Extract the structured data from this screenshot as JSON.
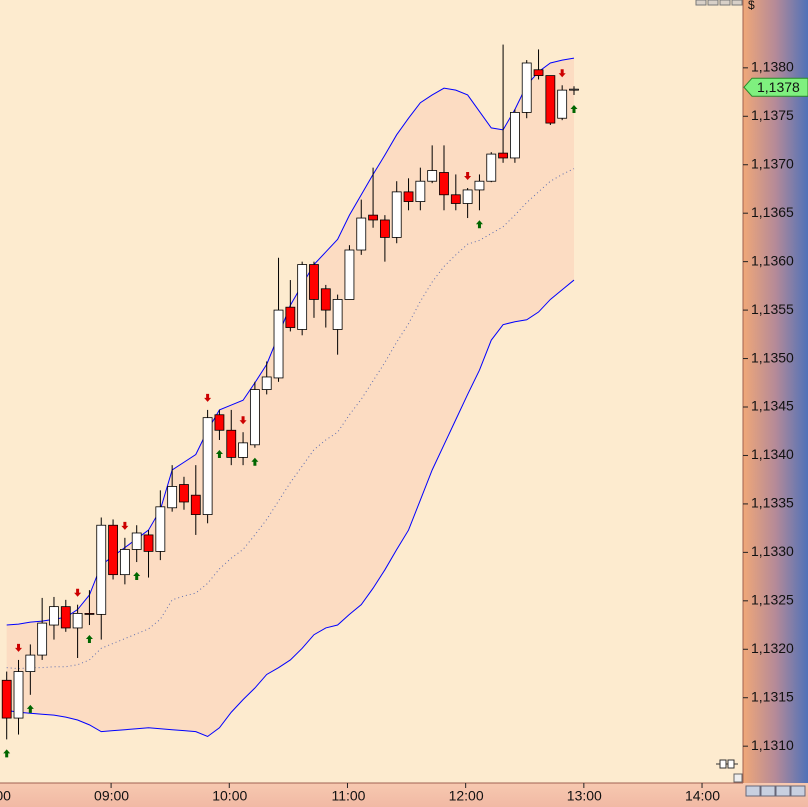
{
  "chart_data": {
    "type": "candlestick",
    "currency": "$",
    "x": [
      487,
      493,
      499,
      505,
      511,
      517,
      523,
      529,
      535,
      541,
      547,
      553,
      559,
      565,
      571,
      577,
      583,
      589,
      595,
      601,
      607,
      613,
      619,
      625,
      631,
      637,
      643,
      649,
      655,
      661,
      667,
      673,
      679,
      685,
      691,
      697,
      703,
      709,
      715,
      721,
      727,
      733,
      739,
      745,
      751,
      757,
      763,
      769,
      775
    ],
    "open": [
      1.13168,
      1.13129,
      1.13177,
      1.13194,
      1.13225,
      1.13244,
      1.13222,
      1.13237,
      1.13236,
      1.13328,
      1.13277,
      1.13303,
      1.13318,
      1.13301,
      1.13346,
      1.1337,
      1.13359,
      1.13339,
      1.13442,
      1.13426,
      1.13398,
      1.13411,
      1.13468,
      1.1348,
      1.13553,
      1.1353,
      1.13597,
      1.13572,
      1.1353,
      1.13561,
      1.13612,
      1.13648,
      1.13643,
      1.13625,
      1.13672,
      1.13662,
      1.13683,
      1.13692,
      1.13669,
      1.1366,
      1.13674,
      1.13683,
      1.13712,
      1.13707,
      1.13754,
      1.13798,
      1.13792,
      1.13748,
      1.13777
    ],
    "high": [
      1.13177,
      1.13189,
      1.13205,
      1.13253,
      1.13254,
      1.13251,
      1.13246,
      1.13261,
      1.13336,
      1.13334,
      1.13315,
      1.13328,
      1.13323,
      1.13364,
      1.1339,
      1.13378,
      1.1339,
      1.13447,
      1.13447,
      1.13447,
      1.13424,
      1.13476,
      1.13497,
      1.13604,
      1.13581,
      1.136,
      1.136,
      1.13576,
      1.13566,
      1.13617,
      1.13664,
      1.13697,
      1.13648,
      1.13683,
      1.13686,
      1.13697,
      1.1372,
      1.1372,
      1.1369,
      1.13676,
      1.1369,
      1.13713,
      1.13824,
      1.13757,
      1.13808,
      1.13819,
      1.13792,
      1.13782,
      1.13781
    ],
    "low": [
      1.13107,
      1.13112,
      1.13153,
      1.13189,
      1.1321,
      1.13218,
      1.13191,
      1.13225,
      1.1321,
      1.13272,
      1.13267,
      1.1329,
      1.13274,
      1.13292,
      1.13342,
      1.13344,
      1.13318,
      1.1333,
      1.13416,
      1.1339,
      1.1339,
      1.13408,
      1.13463,
      1.13476,
      1.13528,
      1.13524,
      1.13542,
      1.13532,
      1.13504,
      1.13561,
      1.13607,
      1.13635,
      1.136,
      1.13619,
      1.13653,
      1.13653,
      1.13681,
      1.13653,
      1.13653,
      1.13645,
      1.13653,
      1.13682,
      1.13702,
      1.13702,
      1.13748,
      1.13788,
      1.13741,
      1.13746,
      1.13772
    ],
    "close": [
      1.13129,
      1.13177,
      1.13194,
      1.13227,
      1.13244,
      1.13222,
      1.13237,
      1.13236,
      1.13328,
      1.13277,
      1.13303,
      1.1332,
      1.13301,
      1.13347,
      1.13368,
      1.13352,
      1.13339,
      1.13439,
      1.13426,
      1.13398,
      1.13413,
      1.13468,
      1.13481,
      1.1355,
      1.13532,
      1.13597,
      1.13561,
      1.1355,
      1.13561,
      1.13612,
      1.13645,
      1.13643,
      1.13625,
      1.13672,
      1.13662,
      1.13683,
      1.13694,
      1.13669,
      1.1366,
      1.13674,
      1.13683,
      1.13711,
      1.13707,
      1.13754,
      1.13805,
      1.13792,
      1.13743,
      1.13777,
      1.13778
    ],
    "up_color": "#ffffff",
    "down_color": "#ff0000",
    "bands": {
      "color": "#0000ff",
      "fill": "#fcdcc2",
      "upper": [
        1.13225,
        1.13226,
        1.13228,
        1.13229,
        1.13231,
        1.13233,
        1.13241,
        1.13256,
        1.13287,
        1.13296,
        1.13305,
        1.13314,
        1.13323,
        1.13344,
        1.13385,
        1.13393,
        1.13401,
        1.13426,
        1.13447,
        1.13452,
        1.13457,
        1.13475,
        1.13494,
        1.13524,
        1.13555,
        1.13576,
        1.13597,
        1.1361,
        1.13623,
        1.13648,
        1.13669,
        1.1369,
        1.1371,
        1.13731,
        1.13748,
        1.13764,
        1.13772,
        1.13779,
        1.13777,
        1.13772,
        1.13755,
        1.13738,
        1.13736,
        1.13757,
        1.13782,
        1.13796,
        1.13805,
        1.13808,
        1.1381
      ],
      "middle": [
        1.13181,
        1.1318,
        1.13181,
        1.13181,
        1.13182,
        1.13182,
        1.13184,
        1.13189,
        1.13201,
        1.13206,
        1.13211,
        1.13216,
        1.13221,
        1.13231,
        1.13251,
        1.13255,
        1.13258,
        1.13268,
        1.13283,
        1.13294,
        1.13303,
        1.13318,
        1.13334,
        1.13353,
        1.13372,
        1.13389,
        1.13406,
        1.13416,
        1.13424,
        1.13442,
        1.13458,
        1.13477,
        1.13496,
        1.13517,
        1.13536,
        1.13559,
        1.13579,
        1.13595,
        1.13607,
        1.13618,
        1.13622,
        1.13629,
        1.13636,
        1.13648,
        1.13661,
        1.13672,
        1.13683,
        1.1369,
        1.13696
      ],
      "lower": [
        1.13137,
        1.13135,
        1.13134,
        1.13133,
        1.13132,
        1.1313,
        1.13127,
        1.13122,
        1.13115,
        1.13116,
        1.13117,
        1.13118,
        1.13119,
        1.13118,
        1.13117,
        1.13116,
        1.13115,
        1.1311,
        1.13119,
        1.13135,
        1.13148,
        1.1316,
        1.13174,
        1.13181,
        1.13189,
        1.13201,
        1.13215,
        1.13222,
        1.13225,
        1.13236,
        1.13246,
        1.13263,
        1.13282,
        1.13303,
        1.13323,
        1.13354,
        1.13385,
        1.13411,
        1.13437,
        1.13463,
        1.13488,
        1.13519,
        1.13535,
        1.13538,
        1.1354,
        1.13548,
        1.13561,
        1.13571,
        1.13581
      ]
    },
    "signals": {
      "up": [
        0,
        2,
        7,
        11,
        18,
        21,
        40,
        48
      ],
      "down": [
        1,
        6,
        10,
        17,
        20,
        39,
        47
      ]
    },
    "last_price": {
      "value": 1.1378,
      "label": "1,1378"
    },
    "xlim": [
      483.6,
      860.8
    ],
    "xticks": [
      {
        "value": 480,
        "label": "00"
      },
      {
        "value": 540,
        "label": "09:00"
      },
      {
        "value": 600,
        "label": "10:00"
      },
      {
        "value": 660,
        "label": "11:00"
      },
      {
        "value": 720,
        "label": "12:00"
      },
      {
        "value": 780,
        "label": "13:00"
      },
      {
        "value": 840,
        "label": "14:00"
      }
    ],
    "ylim": [
      1.13062,
      1.1387
    ],
    "yticks": [
      {
        "value": 1.131,
        "label": "1,1310"
      },
      {
        "value": 1.1315,
        "label": "1,1315"
      },
      {
        "value": 1.132,
        "label": "1,1320"
      },
      {
        "value": 1.1325,
        "label": "1,1325"
      },
      {
        "value": 1.133,
        "label": "1,1330"
      },
      {
        "value": 1.1335,
        "label": "1,1335"
      },
      {
        "value": 1.134,
        "label": "1,1340"
      },
      {
        "value": 1.1345,
        "label": "1,1345"
      },
      {
        "value": 1.135,
        "label": "1,1350"
      },
      {
        "value": 1.1355,
        "label": "1,1355"
      },
      {
        "value": 1.136,
        "label": "1,1360"
      },
      {
        "value": 1.1365,
        "label": "1,1365"
      },
      {
        "value": 1.137,
        "label": "1,1370"
      },
      {
        "value": 1.1375,
        "label": "1,1375"
      },
      {
        "value": 1.138,
        "label": "1,1380"
      }
    ]
  }
}
